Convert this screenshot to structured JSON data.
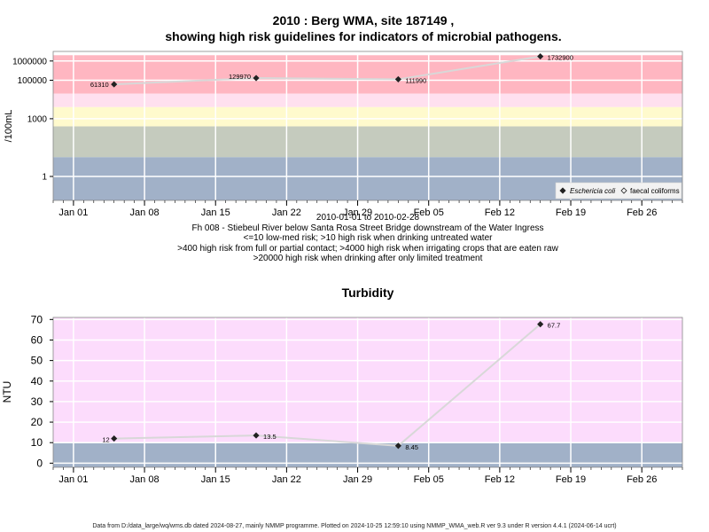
{
  "page": {
    "title_line1": "2010 : Berg WMA, site 187149 ,",
    "title_line2": "showing high risk guidelines for indicators of microbial pathogens.",
    "caption_lines": [
      "2010-01-01 to 2010-02-28",
      "Fh 008 - Stiebeul River below Santa Rosa Street Bridge downstream of the Water Ingress",
      "<=10 low-med risk; >10 high risk when drinking untreated water",
      ">400 high risk from full or partial contact; >4000 high risk when irrigating crops that are eaten raw",
      ">20000 high risk when drinking after only limited treatment"
    ],
    "turbidity_title": "Turbidity",
    "footer": "Data from D:/data_large/wq/wms.db dated 2024-08-27, mainly NMMP programme. Plotted on 2024-10-25 12:59:10 using NMMP_WMA_web.R ver 9.3 under R version 4.4.1 (2024-06-14 ucrt)"
  },
  "colors": {
    "red": "#ffb6c1",
    "pink": "#ffe0ef",
    "yellow": "#fffacd",
    "grey": "#c5cbbe",
    "blue": "#a1b1c8",
    "turb_pink": "#fcdcfc",
    "line": "#d8d8d8"
  },
  "chart_data": [
    {
      "type": "line",
      "ylabel": "/100mL",
      "yscale": "log",
      "y_ticks": [
        "1",
        "1000",
        "100000",
        "1000000"
      ],
      "x_ticks": [
        "Jan 01",
        "Jan 08",
        "Jan 15",
        "Jan 22",
        "Jan 29",
        "Feb 05",
        "Feb 12",
        "Feb 19",
        "Feb 26"
      ],
      "x_range": [
        "2009-12-30",
        "2010-03-02"
      ],
      "risk_bands": [
        {
          "from": 20000,
          "to": 2000000,
          "color": "red"
        },
        {
          "from": 4000,
          "to": 20000,
          "color": "pink"
        },
        {
          "from": 400,
          "to": 4000,
          "color": "yellow"
        },
        {
          "from": 10,
          "to": 400,
          "color": "grey"
        },
        {
          "from": 0.05,
          "to": 10,
          "color": "blue"
        }
      ],
      "series": [
        {
          "name": "Eschericia coli",
          "marker": "filled-diamond",
          "x": [
            "2010-01-05",
            "2010-01-19",
            "2010-02-02",
            "2010-02-16"
          ],
          "values": [
            61310,
            129970,
            111990,
            1732900
          ]
        },
        {
          "name": "faecal coliforms",
          "marker": "open-diamond",
          "x": [],
          "values": []
        }
      ],
      "data_labels": [
        "61310",
        "129970",
        "111990",
        "1732900"
      ],
      "legend": "bottom-right",
      "grid": true
    },
    {
      "type": "line",
      "title": "Turbidity",
      "ylabel": "NTU",
      "y_ticks": [
        "0",
        "10",
        "20",
        "30",
        "40",
        "50",
        "60",
        "70"
      ],
      "ylim": [
        -2,
        71
      ],
      "x_ticks": [
        "Jan 01",
        "Jan 08",
        "Jan 15",
        "Jan 22",
        "Jan 29",
        "Feb 05",
        "Feb 12",
        "Feb 19",
        "Feb 26"
      ],
      "x_range": [
        "2009-12-30",
        "2010-03-02"
      ],
      "risk_bands": [
        {
          "from": 10,
          "to": 71,
          "color": "turb_pink"
        },
        {
          "from": -2,
          "to": 10,
          "color": "blue"
        }
      ],
      "series": [
        {
          "name": "",
          "marker": "filled-diamond",
          "x": [
            "2010-01-05",
            "2010-01-19",
            "2010-02-02",
            "2010-02-16"
          ],
          "values": [
            12,
            13.5,
            8.45,
            67.7
          ]
        }
      ],
      "data_labels": [
        "12",
        "13.5",
        "8.45",
        "67.7"
      ],
      "grid": true
    }
  ]
}
